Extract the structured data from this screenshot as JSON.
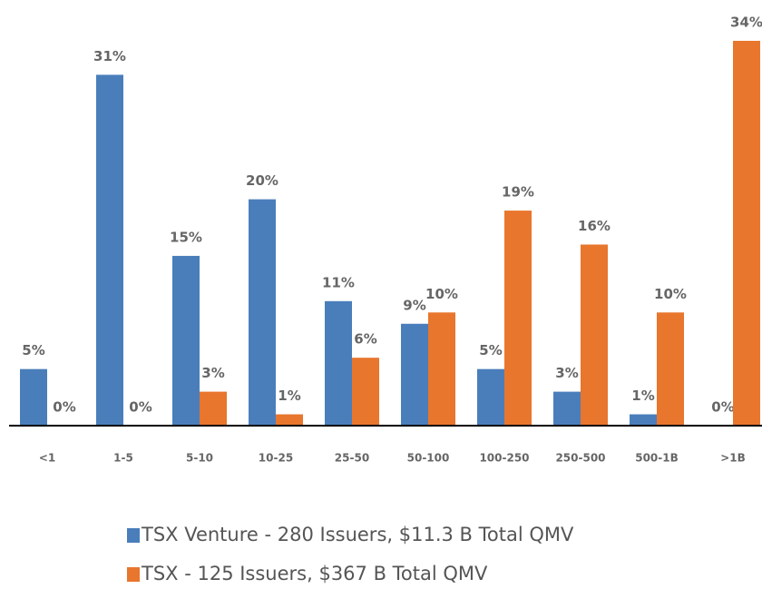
{
  "chart_data": {
    "type": "bar",
    "categories": [
      "<1",
      "1-5",
      "5-10",
      "10-25",
      "25-50",
      "50-100",
      "100-250",
      "250-500",
      "500-1B",
      ">1B"
    ],
    "series": [
      {
        "name": "TSX Venture - 280 Issuers, $11.3 B Total QMV",
        "color": "#4a7ebb",
        "values": [
          5,
          31,
          15,
          20,
          11,
          9,
          5,
          3,
          1,
          0
        ],
        "value_labels": [
          "5%",
          "31%",
          "15%",
          "20%",
          "11%",
          "9%",
          "5%",
          "3%",
          "1%",
          "0%"
        ]
      },
      {
        "name": "TSX - 125 Issuers, $367 B Total QMV",
        "color": "#e8762d",
        "values": [
          0,
          0,
          3,
          1,
          6,
          10,
          19,
          16,
          10,
          34
        ],
        "value_labels": [
          "0%",
          "0%",
          "3%",
          "1%",
          "6%",
          "10%",
          "19%",
          "16%",
          "10%",
          "34%"
        ]
      }
    ]
  }
}
